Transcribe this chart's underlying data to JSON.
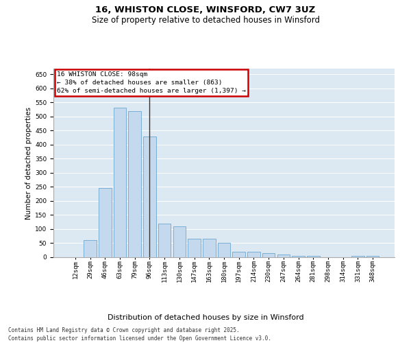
{
  "title1": "16, WHISTON CLOSE, WINSFORD, CW7 3UZ",
  "title2": "Size of property relative to detached houses in Winsford",
  "xlabel": "Distribution of detached houses by size in Winsford",
  "ylabel": "Number of detached properties",
  "categories": [
    "12sqm",
    "29sqm",
    "46sqm",
    "63sqm",
    "79sqm",
    "96sqm",
    "113sqm",
    "130sqm",
    "147sqm",
    "163sqm",
    "180sqm",
    "197sqm",
    "214sqm",
    "230sqm",
    "247sqm",
    "264sqm",
    "281sqm",
    "298sqm",
    "314sqm",
    "331sqm",
    "348sqm"
  ],
  "values": [
    1,
    60,
    245,
    530,
    520,
    430,
    120,
    110,
    65,
    65,
    50,
    20,
    20,
    15,
    10,
    5,
    5,
    0,
    0,
    5,
    5
  ],
  "bar_color": "#c5d9ee",
  "bar_edge_color": "#7aaed4",
  "vline_index": 5,
  "vline_color": "#333333",
  "annotation_text": "16 WHISTON CLOSE: 98sqm\n← 38% of detached houses are smaller (863)\n62% of semi-detached houses are larger (1,397) →",
  "annotation_box_facecolor": "#ffffff",
  "annotation_box_edgecolor": "#cc0000",
  "ylim": [
    0,
    670
  ],
  "yticks": [
    0,
    50,
    100,
    150,
    200,
    250,
    300,
    350,
    400,
    450,
    500,
    550,
    600,
    650
  ],
  "bg_color": "#dce8f2",
  "grid_color": "#ffffff",
  "footer": "Contains HM Land Registry data © Crown copyright and database right 2025.\nContains public sector information licensed under the Open Government Licence v3.0.",
  "title1_fontsize": 9.5,
  "title2_fontsize": 8.5,
  "xlabel_fontsize": 8,
  "ylabel_fontsize": 7.5,
  "tick_fontsize": 6.5,
  "ann_fontsize": 6.8,
  "footer_fontsize": 5.5
}
